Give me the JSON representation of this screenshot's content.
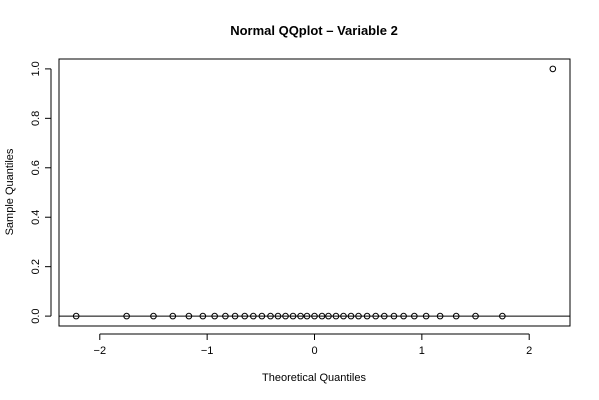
{
  "chart_data": {
    "type": "scatter",
    "title": "Normal QQplot – Variable 2",
    "xlabel": "Theoretical Quantiles",
    "ylabel": "Sample Quantiles",
    "xlim": [
      -2.38,
      2.38
    ],
    "ylim": [
      -0.04,
      1.04
    ],
    "x_ticks": [
      -2,
      -1,
      0,
      1,
      2
    ],
    "x_tick_labels": [
      "−2",
      "−1",
      "0",
      "1",
      "2"
    ],
    "y_ticks": [
      0.0,
      0.2,
      0.4,
      0.6,
      0.8,
      1.0
    ],
    "y_tick_labels": [
      "0.0",
      "0.2",
      "0.4",
      "0.6",
      "0.8",
      "1.0"
    ],
    "reference_line": {
      "y": 0
    },
    "grid": false,
    "legend": "none",
    "points": {
      "x": [
        -2.22,
        -1.75,
        -1.5,
        -1.32,
        -1.17,
        -1.04,
        -0.93,
        -0.83,
        -0.74,
        -0.65,
        -0.57,
        -0.49,
        -0.41,
        -0.34,
        -0.27,
        -0.2,
        -0.13,
        -0.07,
        0.0,
        0.07,
        0.13,
        0.2,
        0.27,
        0.34,
        0.41,
        0.49,
        0.57,
        0.65,
        0.74,
        0.83,
        0.93,
        1.04,
        1.17,
        1.32,
        1.5,
        1.75,
        2.22
      ],
      "y": [
        0,
        0,
        0,
        0,
        0,
        0,
        0,
        0,
        0,
        0,
        0,
        0,
        0,
        0,
        0,
        0,
        0,
        0,
        0,
        0,
        0,
        0,
        0,
        0,
        0,
        0,
        0,
        0,
        0,
        0,
        0,
        0,
        0,
        0,
        0,
        0,
        1.0
      ]
    }
  }
}
